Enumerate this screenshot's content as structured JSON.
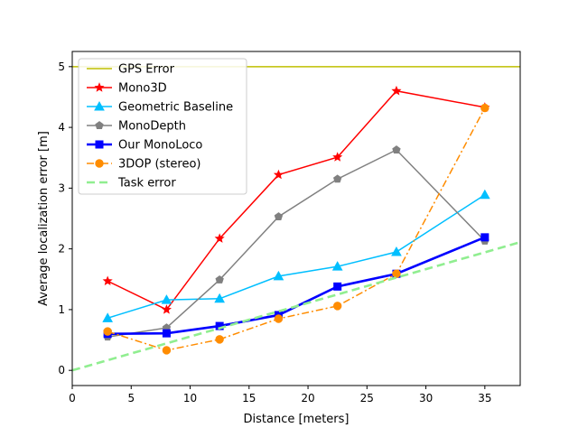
{
  "chart_data": {
    "type": "line",
    "title": "",
    "xlabel": "Distance [meters]",
    "ylabel": "Average localization error [m]",
    "xlim": [
      0,
      38
    ],
    "ylim": [
      -0.25,
      5.25
    ],
    "xticks": [
      0,
      5,
      10,
      15,
      20,
      25,
      30,
      35
    ],
    "yticks": [
      0,
      1,
      2,
      3,
      4,
      5
    ],
    "grid": false,
    "legend_placement": "top-left",
    "x": [
      3,
      8,
      12.5,
      17.5,
      22.5,
      27.5,
      35
    ],
    "series": [
      {
        "name": "GPS Error",
        "color": "#bfbf00",
        "style": "solid",
        "marker": "none",
        "x": [
          0,
          38
        ],
        "values": [
          5,
          5
        ]
      },
      {
        "name": "Mono3D",
        "color": "#ff0000",
        "style": "solid",
        "marker": "star",
        "values": [
          1.47,
          1.0,
          2.17,
          3.22,
          3.51,
          4.6,
          4.33
        ]
      },
      {
        "name": "Geometric Baseline",
        "color": "#00bfff",
        "style": "solid",
        "marker": "triangle",
        "values": [
          0.86,
          1.16,
          1.18,
          1.55,
          1.71,
          1.95,
          2.89
        ]
      },
      {
        "name": "MonoDepth",
        "color": "#808080",
        "style": "solid",
        "marker": "pentagon",
        "values": [
          0.55,
          0.7,
          1.49,
          2.53,
          3.15,
          3.63,
          2.13
        ]
      },
      {
        "name": "Our MonoLoco",
        "color": "#0000ff",
        "style": "solid-thick",
        "marker": "square",
        "values": [
          0.6,
          0.61,
          0.73,
          0.91,
          1.38,
          1.59,
          2.19
        ]
      },
      {
        "name": "3DOP (stereo)",
        "color": "#ff8c00",
        "style": "dashdot",
        "marker": "circle",
        "values": [
          0.64,
          0.33,
          0.51,
          0.85,
          1.06,
          1.59,
          4.32
        ]
      },
      {
        "name": "Task error",
        "color": "#90ee90",
        "style": "dashed-thick",
        "marker": "none",
        "x": [
          0,
          38
        ],
        "values": [
          0,
          2.11
        ]
      }
    ]
  }
}
